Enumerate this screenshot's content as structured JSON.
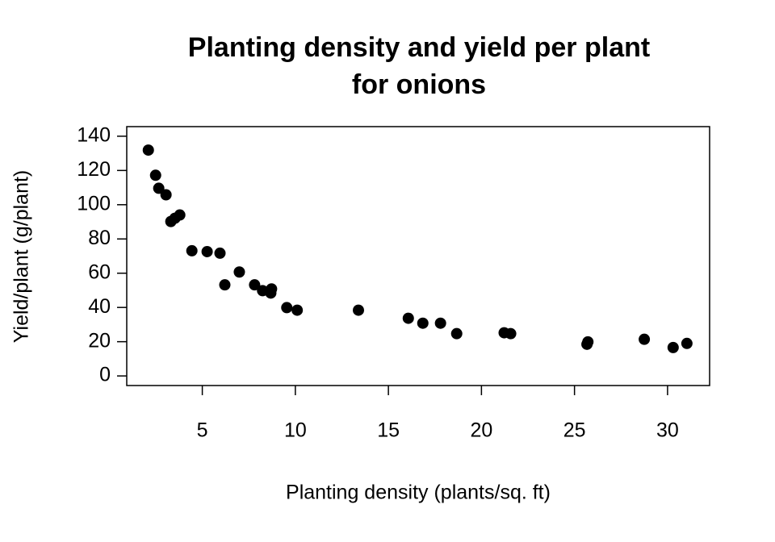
{
  "chart_data": {
    "type": "scatter",
    "title": "Planting density and yield per plant\nfor onions",
    "x_label": "Planting density (plants/sq. ft)",
    "y_label": "Yield/plant (g/plant)",
    "color": "#000000",
    "x": [
      2.1,
      2.49,
      2.66,
      3.05,
      3.31,
      3.53,
      3.79,
      4.44,
      5.26,
      5.95,
      6.21,
      6.99,
      7.81,
      8.24,
      8.68,
      8.72,
      9.54,
      10.1,
      13.39,
      16.07,
      16.85,
      17.8,
      18.67,
      21.22,
      21.57,
      25.72,
      25.67,
      28.75,
      30.3,
      31.04
    ],
    "values": [
      131.9,
      117.2,
      109.6,
      105.8,
      90.2,
      92.1,
      94.0,
      73.1,
      72.6,
      71.7,
      53.2,
      60.7,
      53.2,
      49.8,
      48.4,
      50.8,
      39.9,
      38.4,
      38.4,
      33.7,
      30.8,
      30.8,
      24.7,
      25.2,
      24.7,
      19.9,
      18.5,
      21.4,
      16.6,
      19.0
    ],
    "xlim": [
      0.94,
      32.26
    ],
    "xticks": [
      5,
      10,
      15,
      20,
      25,
      30
    ],
    "ylim": [
      -5.6,
      145.6
    ],
    "yticks": [
      0,
      20,
      40,
      60,
      80,
      100,
      120,
      140
    ]
  }
}
